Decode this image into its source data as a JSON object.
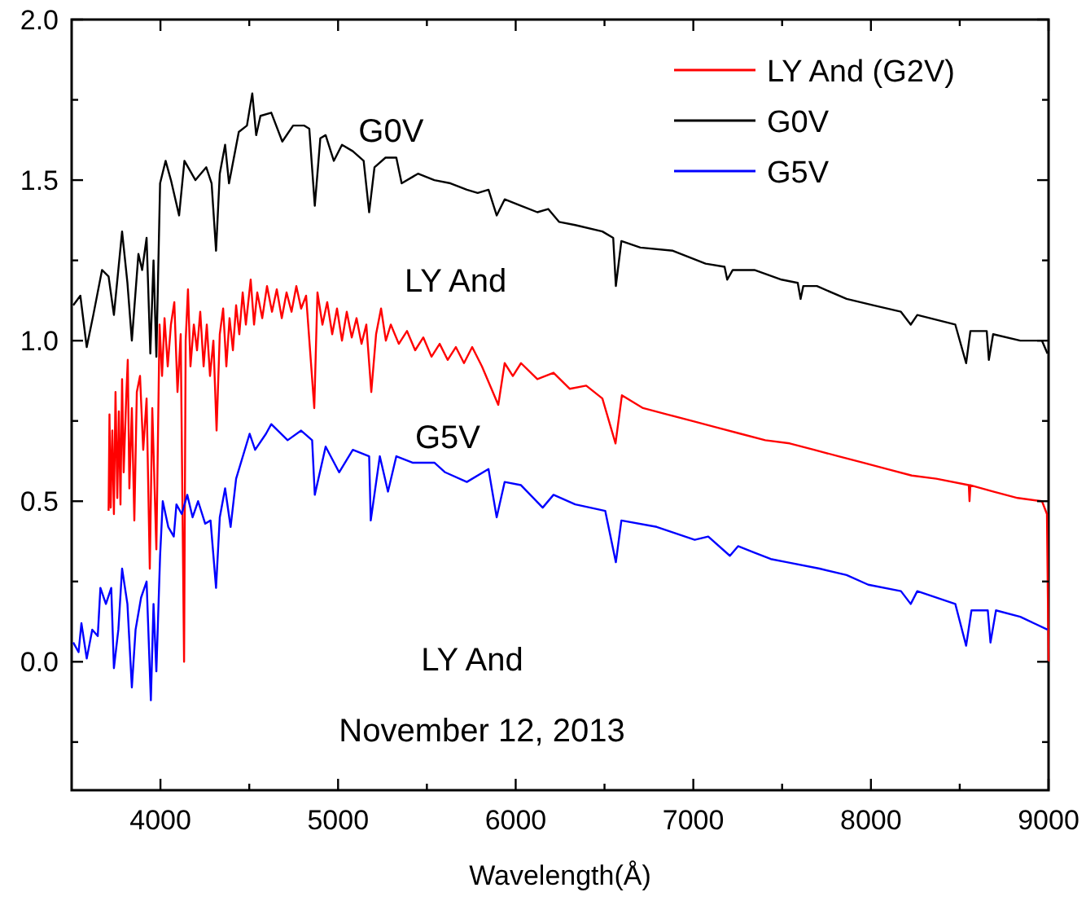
{
  "chart_data": {
    "type": "line",
    "xlabel": "Wavelength(Å)",
    "xlim": [
      3500,
      9000
    ],
    "ylim": [
      -0.4,
      2.0
    ],
    "xticks": [
      4000,
      {
        "value": 4500,
        "label": null
      },
      5000,
      {
        "value": 5500,
        "label": null
      },
      6000,
      {
        "value": 6500,
        "label": null
      },
      7000,
      {
        "value": 7500,
        "label": null
      },
      8000,
      {
        "value": 8500,
        "label": null
      },
      9000
    ],
    "yticks": [
      {
        "value": -0.25,
        "label": null
      },
      {
        "value": 0,
        "label": "0.0"
      },
      {
        "value": 0.25,
        "label": null
      },
      {
        "value": 0.5,
        "label": "0.5"
      },
      {
        "value": 0.75,
        "label": null
      },
      {
        "value": 1.0,
        "label": "1.0"
      },
      {
        "value": 1.25,
        "label": null
      },
      {
        "value": 1.5,
        "label": "1.5"
      },
      {
        "value": 1.75,
        "label": null
      },
      {
        "value": 2.0,
        "label": "2.0"
      }
    ],
    "grid": false,
    "legend": "top right",
    "marker": "none",
    "line_style": "solid",
    "annotations": [
      "G0V",
      "LY And",
      "G5V",
      "LY And",
      "November 12, 2013"
    ],
    "series": [
      {
        "name": "LY And (G2V)",
        "color": "#ff0000",
        "x": [
          3708,
          3713,
          3720,
          3729,
          3738,
          3747,
          3757,
          3766,
          3775,
          3784,
          3793,
          3807,
          3816,
          3825,
          3839,
          3853,
          3867,
          3885,
          3903,
          3922,
          3940,
          3954,
          3977,
          3995,
          4009,
          4023,
          4041,
          4059,
          4078,
          4096,
          4114,
          4133,
          4142,
          4155,
          4169,
          4188,
          4206,
          4224,
          4243,
          4261,
          4279,
          4298,
          4316,
          4334,
          4353,
          4371,
          4389,
          4408,
          4426,
          4444,
          4463,
          4481,
          4508,
          4527,
          4545,
          4573,
          4600,
          4628,
          4655,
          4683,
          4710,
          4738,
          4765,
          4792,
          4820,
          4866,
          4884,
          4912,
          4939,
          4967,
          4994,
          5022,
          5049,
          5077,
          5104,
          5132,
          5159,
          5187,
          5214,
          5242,
          5269,
          5297,
          5342,
          5388,
          5434,
          5480,
          5526,
          5572,
          5617,
          5663,
          5709,
          5755,
          5810,
          5902,
          5938,
          5984,
          6030,
          6122,
          6213,
          6305,
          6397,
          6488,
          6562,
          6598,
          6717,
          6855,
          6992,
          7130,
          7267,
          7405,
          7543,
          7680,
          7818,
          7955,
          8093,
          8230,
          8368,
          8551,
          8555,
          8560,
          8688,
          8826,
          8963,
          8991,
          9000
        ],
        "values": [
          0.47,
          0.77,
          0.48,
          0.72,
          0.46,
          0.84,
          0.51,
          0.78,
          0.49,
          0.88,
          0.59,
          0.82,
          0.94,
          0.54,
          0.79,
          0.44,
          0.84,
          0.89,
          0.66,
          0.82,
          0.29,
          0.79,
          0.35,
          1.05,
          0.89,
          1.07,
          0.92,
          1.05,
          1.12,
          0.84,
          1.02,
          0.0,
          1.0,
          1.16,
          0.92,
          1.05,
          0.97,
          1.09,
          0.92,
          1.05,
          0.89,
          1.0,
          0.72,
          1.02,
          1.1,
          0.92,
          1.07,
          0.97,
          1.11,
          1.02,
          1.15,
          1.05,
          1.19,
          1.05,
          1.15,
          1.07,
          1.17,
          1.09,
          1.16,
          1.07,
          1.15,
          1.09,
          1.17,
          1.1,
          1.14,
          0.79,
          1.15,
          1.05,
          1.12,
          1.02,
          1.1,
          1.0,
          1.09,
          1.01,
          1.07,
          0.99,
          1.05,
          0.84,
          1.02,
          1.1,
          1.0,
          1.05,
          0.99,
          1.03,
          0.97,
          1.01,
          0.95,
          0.99,
          0.94,
          0.98,
          0.93,
          0.98,
          0.92,
          0.8,
          0.93,
          0.89,
          0.93,
          0.88,
          0.9,
          0.85,
          0.86,
          0.82,
          0.68,
          0.83,
          0.79,
          0.77,
          0.75,
          0.73,
          0.71,
          0.69,
          0.68,
          0.66,
          0.64,
          0.62,
          0.6,
          0.58,
          0.57,
          0.55,
          0.5,
          0.55,
          0.53,
          0.51,
          0.5,
          0.46,
          0.0
        ]
      },
      {
        "name": "G0V",
        "color": "#000000",
        "x": [
          3509,
          3549,
          3585,
          3622,
          3671,
          3708,
          3738,
          3784,
          3814,
          3839,
          3876,
          3897,
          3922,
          3943,
          3961,
          3977,
          3998,
          4029,
          4059,
          4105,
          4135,
          4197,
          4258,
          4288,
          4313,
          4334,
          4364,
          4386,
          4441,
          4487,
          4517,
          4539,
          4563,
          4624,
          4686,
          4747,
          4808,
          4838,
          4869,
          4900,
          4930,
          4976,
          5022,
          5083,
          5144,
          5175,
          5205,
          5267,
          5328,
          5358,
          5450,
          5542,
          5633,
          5725,
          5786,
          5847,
          5893,
          5938,
          6030,
          6122,
          6183,
          6244,
          6335,
          6488,
          6549,
          6564,
          6595,
          6702,
          6885,
          7069,
          7176,
          7191,
          7222,
          7344,
          7497,
          7588,
          7604,
          7619,
          7696,
          7863,
          8016,
          8169,
          8224,
          8261,
          8475,
          8536,
          8560,
          8652,
          8664,
          8688,
          8841,
          8963,
          8994
        ],
        "values": [
          1.11,
          1.14,
          0.98,
          1.08,
          1.22,
          1.2,
          1.08,
          1.34,
          1.18,
          1.0,
          1.27,
          1.22,
          1.32,
          0.96,
          1.25,
          0.95,
          1.49,
          1.56,
          1.5,
          1.39,
          1.56,
          1.5,
          1.54,
          1.49,
          1.28,
          1.52,
          1.61,
          1.49,
          1.65,
          1.67,
          1.77,
          1.64,
          1.7,
          1.71,
          1.62,
          1.67,
          1.67,
          1.66,
          1.42,
          1.63,
          1.64,
          1.56,
          1.61,
          1.59,
          1.56,
          1.4,
          1.54,
          1.57,
          1.57,
          1.49,
          1.52,
          1.5,
          1.49,
          1.47,
          1.46,
          1.47,
          1.39,
          1.44,
          1.42,
          1.4,
          1.41,
          1.37,
          1.36,
          1.34,
          1.32,
          1.17,
          1.31,
          1.29,
          1.28,
          1.24,
          1.23,
          1.19,
          1.22,
          1.22,
          1.19,
          1.18,
          1.13,
          1.17,
          1.17,
          1.13,
          1.11,
          1.09,
          1.05,
          1.08,
          1.05,
          0.93,
          1.03,
          1.03,
          0.94,
          1.02,
          1.0,
          1.0,
          0.96
        ]
      },
      {
        "name": "G5V",
        "color": "#0000ff",
        "x": [
          3509,
          3539,
          3555,
          3585,
          3616,
          3647,
          3662,
          3693,
          3723,
          3738,
          3763,
          3784,
          3814,
          3839,
          3860,
          3891,
          3922,
          3946,
          3961,
          3977,
          3998,
          4013,
          4044,
          4075,
          4090,
          4120,
          4151,
          4181,
          4212,
          4252,
          4282,
          4313,
          4334,
          4364,
          4395,
          4426,
          4502,
          4533,
          4594,
          4624,
          4716,
          4792,
          4854,
          4869,
          4930,
          5006,
          5083,
          5175,
          5184,
          5235,
          5281,
          5328,
          5419,
          5542,
          5603,
          5725,
          5847,
          5893,
          5938,
          6030,
          6152,
          6213,
          6335,
          6504,
          6564,
          6595,
          6794,
          7008,
          7084,
          7206,
          7252,
          7344,
          7436,
          7527,
          7711,
          7863,
          7985,
          8169,
          8224,
          8261,
          8475,
          8536,
          8566,
          8658,
          8673,
          8704,
          8841,
          8994
        ],
        "values": [
          0.06,
          0.03,
          0.12,
          0.01,
          0.1,
          0.08,
          0.23,
          0.18,
          0.23,
          -0.02,
          0.1,
          0.29,
          0.18,
          -0.08,
          0.1,
          0.2,
          0.25,
          -0.12,
          0.18,
          -0.03,
          0.33,
          0.5,
          0.42,
          0.39,
          0.49,
          0.46,
          0.52,
          0.45,
          0.5,
          0.43,
          0.44,
          0.23,
          0.45,
          0.54,
          0.42,
          0.57,
          0.71,
          0.66,
          0.71,
          0.74,
          0.69,
          0.72,
          0.69,
          0.52,
          0.67,
          0.59,
          0.66,
          0.64,
          0.44,
          0.64,
          0.53,
          0.64,
          0.62,
          0.62,
          0.59,
          0.56,
          0.6,
          0.45,
          0.56,
          0.55,
          0.48,
          0.52,
          0.49,
          0.47,
          0.31,
          0.44,
          0.42,
          0.38,
          0.39,
          0.33,
          0.36,
          0.34,
          0.32,
          0.31,
          0.29,
          0.27,
          0.24,
          0.22,
          0.18,
          0.22,
          0.18,
          0.05,
          0.16,
          0.16,
          0.06,
          0.16,
          0.14,
          0.1
        ]
      }
    ]
  }
}
